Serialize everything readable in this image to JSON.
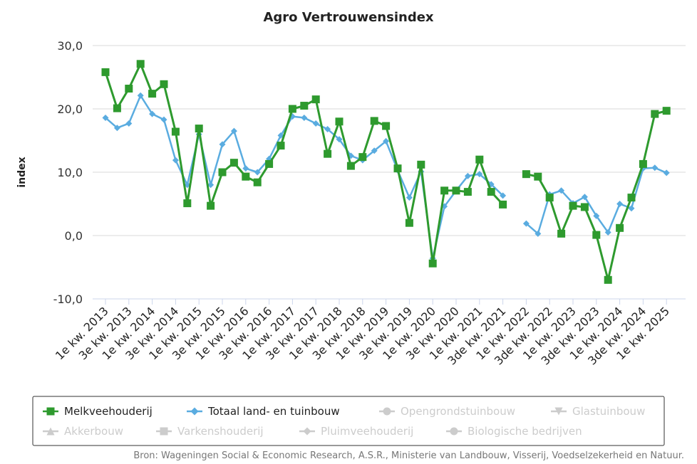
{
  "chart_data": {
    "type": "line",
    "title": "Agro Vertrouwensindex",
    "ylabel": "index",
    "ylim": [
      -10,
      30
    ],
    "yticks": [
      -10,
      0,
      10,
      20,
      30
    ],
    "ytick_labels": [
      "-10,0",
      "0,0",
      "10,0",
      "20,0",
      "30,0"
    ],
    "grid": true,
    "legend_position": "bottom",
    "x": [
      "1e kw. 2013",
      "2e kw. 2013",
      "3e kw. 2013",
      "4e kw. 2013",
      "1e kw. 2014",
      "2e kw. 2014",
      "3e kw. 2014",
      "4e kw. 2014",
      "1e kw. 2015",
      "2e kw. 2015",
      "3e kw. 2015",
      "4e kw. 2015",
      "1e kw. 2016",
      "2e kw. 2016",
      "3e kw. 2016",
      "4e kw. 2016",
      "1e kw. 2017",
      "2e kw. 2017",
      "3e kw. 2017",
      "4e kw. 2017",
      "1e kw. 2018",
      "2e kw. 2018",
      "3e kw. 2018",
      "4e kw. 2018",
      "1e kw. 2019",
      "2e kw. 2019",
      "3e kw. 2019",
      "4e kw. 2019",
      "1e kw. 2020",
      "2e kw. 2020",
      "3e kw. 2020",
      "4e kw. 2020",
      "1e kw. 2021",
      "2e kw. 2021",
      "3de kw. 2021",
      "4de kw. 2021",
      "1e kw. 2022",
      "2e kw. 2022",
      "3de kw. 2022",
      "4de kw. 2022",
      "1e kw. 2023",
      "2e kw. 2023",
      "3de kw. 2023",
      "4de kw. 2023",
      "1e kw. 2024",
      "2e kw. 2024",
      "3de kw. 2024",
      "4de kw. 2024",
      "1e kw. 2025",
      "2e kw. 2025"
    ],
    "x_tick_labels": [
      "1e kw. 2013",
      "3e kw. 2013",
      "1e kw. 2014",
      "3e kw. 2014",
      "1e kw. 2015",
      "3e kw. 2015",
      "1e kw. 2016",
      "3e kw. 2016",
      "1e kw. 2017",
      "3e kw. 2017",
      "1e kw. 2018",
      "3e kw. 2018",
      "1e kw. 2019",
      "3e kw. 2019",
      "1e kw. 2020",
      "3e kw. 2020",
      "1e kw. 2021",
      "3de kw. 2021",
      "1e kw. 2022",
      "3de kw. 2022",
      "1e kw. 2023",
      "3de kw. 2023",
      "1e kw. 2024",
      "3de kw. 2024",
      "1e kw. 2025"
    ],
    "series": [
      {
        "name": "Melkveehouderij",
        "color": "#2e9a2e",
        "marker": "square",
        "values": [
          25.8,
          20.1,
          23.2,
          27.1,
          22.4,
          23.9,
          16.4,
          5.1,
          16.9,
          4.7,
          10.0,
          11.5,
          9.3,
          8.4,
          11.3,
          14.2,
          20.0,
          20.5,
          21.5,
          12.9,
          18.0,
          11.0,
          12.4,
          18.1,
          17.3,
          10.6,
          2.0,
          11.2,
          -4.4,
          7.1,
          7.1,
          6.9,
          12.0,
          6.9,
          4.9,
          null,
          9.7,
          9.3,
          6.0,
          0.3,
          4.7,
          4.5,
          0.1,
          -7.0,
          1.2,
          6.0,
          11.3,
          19.2,
          19.7,
          null
        ]
      },
      {
        "name": "Totaal land- en tuinbouw",
        "color": "#5aace0",
        "marker": "diamond",
        "values": [
          18.6,
          17.0,
          17.7,
          22.1,
          19.2,
          18.3,
          11.9,
          8.0,
          16.0,
          8.0,
          14.4,
          16.5,
          10.6,
          10.0,
          12.1,
          15.8,
          18.8,
          18.6,
          17.7,
          16.8,
          15.2,
          12.6,
          11.9,
          13.4,
          14.9,
          10.3,
          6.0,
          10.1,
          -3.6,
          4.6,
          7.1,
          9.4,
          9.7,
          8.1,
          6.3,
          null,
          1.9,
          0.3,
          6.5,
          7.1,
          5.1,
          6.1,
          3.1,
          0.5,
          5.0,
          4.3,
          10.6,
          10.7,
          9.9,
          null
        ]
      }
    ],
    "inactive_legend": [
      {
        "name": "Opengrondstuinbouw",
        "marker": "circle"
      },
      {
        "name": "Glastuinbouw",
        "marker": "triangle-down"
      },
      {
        "name": "Akkerbouw",
        "marker": "triangle"
      },
      {
        "name": "Varkenshouderij",
        "marker": "square"
      },
      {
        "name": "Pluimveehouderij",
        "marker": "diamond"
      },
      {
        "name": "Biologische bedrijven",
        "marker": "circle"
      }
    ],
    "inactive_color": "#cccccc",
    "source": "Bron: Wageningen Social & Economic Research, A.S.R., Ministerie van Landbouw, Visserij, Voedselzekerheid en Natuur."
  }
}
